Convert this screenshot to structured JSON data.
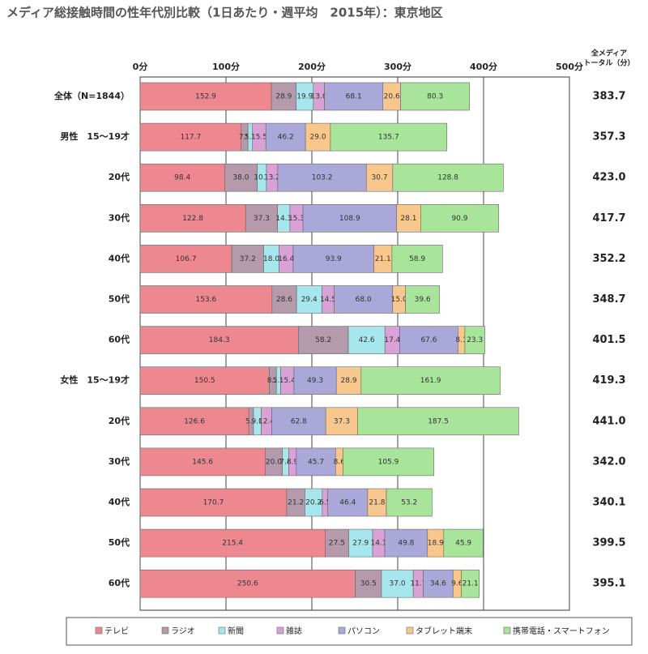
{
  "chart_data": {
    "type": "stacked-bar",
    "orientation": "horizontal",
    "title": "メディア総接触時間の性年代別比較（1日あたり・週平均　2015年）：東京地区",
    "categories": [
      "全体（N=1844）",
      "男性　15～19才",
      "20代",
      "30代",
      "40代",
      "50代",
      "60代",
      "女性　15～19才",
      "20代",
      "30代",
      "40代",
      "50代",
      "60代"
    ],
    "xlim": [
      0,
      500
    ],
    "xticks": [
      {
        "value": 0,
        "label": "0分"
      },
      {
        "value": 100,
        "label": "100分"
      },
      {
        "value": 200,
        "label": "200分"
      },
      {
        "value": 300,
        "label": "300分"
      },
      {
        "value": 400,
        "label": "400分"
      },
      {
        "value": 500,
        "label": "500分"
      }
    ],
    "grid": true,
    "legend": "bottom",
    "series": [
      {
        "name": "テレビ",
        "color": "#ee8890",
        "values": [
          152.9,
          117.7,
          98.4,
          122.8,
          106.7,
          153.6,
          184.3,
          150.5,
          126.6,
          145.6,
          170.7,
          215.4,
          250.6
        ],
        "value_labels": [
          "152.9",
          "117.7",
          "98.4",
          "122.8",
          "106.7",
          "153.6",
          "184.3",
          "150.5",
          "126.6",
          "145.6",
          "170.7",
          "215.4",
          "250.6"
        ]
      },
      {
        "name": "ラジオ",
        "color": "#b49aaa",
        "values": [
          28.9,
          7.9,
          38.0,
          37.3,
          37.2,
          28.6,
          58.2,
          8.2,
          5.4,
          20.0,
          21.2,
          27.5,
          30.5
        ],
        "value_labels": [
          "28.9",
          "7.9",
          "38.0",
          "37.3",
          "37.2",
          "28.6",
          "58.2",
          "8.2",
          "5.4",
          "20.0",
          "21.2",
          "27.5",
          "30.5"
        ]
      },
      {
        "name": "新聞",
        "color": "#a6e6ec",
        "values": [
          19.9,
          5.3,
          10.7,
          14.3,
          18.0,
          29.4,
          42.6,
          5.1,
          9.0,
          7.4,
          20.2,
          27.9,
          37.0
        ],
        "value_labels": [
          "19.9",
          "5.3",
          "10.7",
          "14.3",
          "18.0",
          "29.4",
          "42.6",
          "5.1",
          "9.0",
          "7.4",
          "20.2",
          "27.9",
          "37.0"
        ]
      },
      {
        "name": "雑誌",
        "color": "#d8a2d6",
        "values": [
          13.0,
          15.5,
          13.2,
          15.3,
          16.4,
          14.5,
          17.4,
          15.4,
          12.4,
          8.9,
          6.5,
          14.1,
          11.7
        ],
        "value_labels": [
          "13.0",
          "15.5",
          "13.2",
          "15.3",
          "16.4",
          "14.5",
          "17.4",
          "15.4",
          "12.4",
          "8.9",
          "6.5",
          "14.1",
          "11.7"
        ]
      },
      {
        "name": "パソコン",
        "color": "#aaa8d8",
        "values": [
          68.1,
          46.2,
          103.2,
          108.9,
          93.9,
          68.0,
          67.6,
          49.3,
          62.8,
          45.7,
          46.4,
          49.8,
          34.6
        ],
        "value_labels": [
          "68.1",
          "46.2",
          "103.2",
          "108.9",
          "93.9",
          "68.0",
          "67.6",
          "49.3",
          "62.8",
          "45.7",
          "46.4",
          "49.8",
          "34.6"
        ]
      },
      {
        "name": "タブレット端末",
        "color": "#f8c78e",
        "values": [
          20.6,
          29.0,
          30.7,
          28.1,
          21.1,
          15.0,
          8.1,
          28.9,
          37.3,
          8.6,
          21.8,
          18.9,
          9.6
        ],
        "value_labels": [
          "20.6",
          "29.0",
          "30.7",
          "28.1",
          "21.1",
          "15.0",
          "8.1",
          "28.9",
          "37.3",
          "8.6",
          "21.8",
          "18.9",
          "9.6"
        ]
      },
      {
        "name": "携帯電話・スマートフォン",
        "color": "#a8e49a",
        "values": [
          80.3,
          135.7,
          128.8,
          90.9,
          58.9,
          39.6,
          23.3,
          161.9,
          187.5,
          105.9,
          53.2,
          45.9,
          21.1
        ],
        "value_labels": [
          "80.3",
          "135.7",
          "128.8",
          "90.9",
          "58.9",
          "39.6",
          "23.3",
          "161.9",
          "187.5",
          "105.9",
          "53.2",
          "45.9",
          "21.1"
        ]
      }
    ],
    "totals": {
      "title": [
        "全メディア",
        "トータル（分）"
      ],
      "values": [
        383.7,
        357.3,
        423.0,
        417.7,
        352.2,
        348.7,
        401.5,
        419.3,
        441.0,
        342.0,
        340.1,
        399.5,
        395.1
      ],
      "value_labels": [
        "383.7",
        "357.3",
        "423.0",
        "417.7",
        "352.2",
        "348.7",
        "401.5",
        "419.3",
        "441.0",
        "342.0",
        "340.1",
        "399.5",
        "395.1"
      ]
    }
  }
}
